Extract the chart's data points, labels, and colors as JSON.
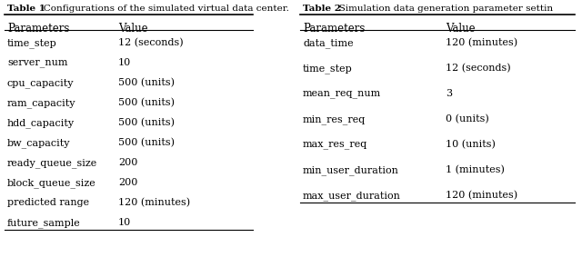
{
  "table1_title_bold": "Table 1",
  "table1_title_rest": "   Configurations of the simulated virtual data center.",
  "table2_title_bold": "Table 2",
  "table2_title_rest": "   Simulation data generation parameter settin",
  "table1_headers": [
    "Parameters",
    "Value"
  ],
  "table2_headers": [
    "Parameters",
    "Value"
  ],
  "table1_rows": [
    [
      "time_step",
      "12 (seconds)"
    ],
    [
      "server_num",
      "10"
    ],
    [
      "cpu_capacity",
      "500 (units)"
    ],
    [
      "ram_capacity",
      "500 (units)"
    ],
    [
      "hdd_capacity",
      "500 (units)"
    ],
    [
      "bw_capacity",
      "500 (units)"
    ],
    [
      "ready_queue_size",
      "200"
    ],
    [
      "block_queue_size",
      "200"
    ],
    [
      "predicted range",
      "120 (minutes)"
    ],
    [
      "future_sample",
      "10"
    ]
  ],
  "table2_rows": [
    [
      "data_time",
      "120 (minutes)"
    ],
    [
      "time_step",
      "12 (seconds)"
    ],
    [
      "mean_req_num",
      "3"
    ],
    [
      "min_res_req",
      "0 (units)"
    ],
    [
      "max_res_req",
      "10 (units)"
    ],
    [
      "min_user_duration",
      "1 (minutes)"
    ],
    [
      "max_user_duration",
      "120 (minutes)"
    ]
  ],
  "bg_color": "#ffffff",
  "text_color": "#000000",
  "line_color": "#000000"
}
